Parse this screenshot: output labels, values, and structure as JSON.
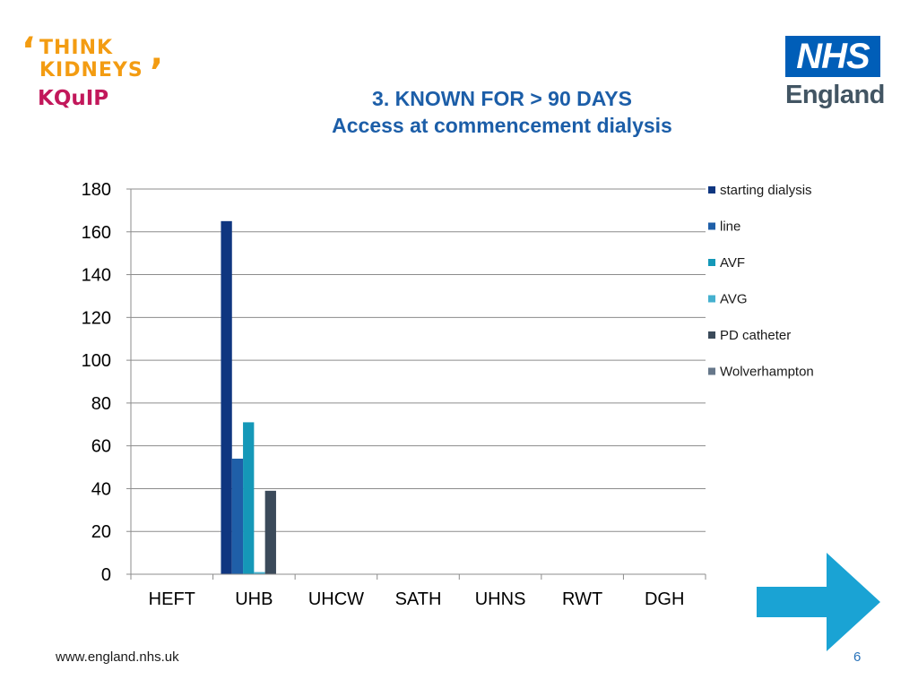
{
  "logos": {
    "think_kidneys": {
      "line1": "THINK",
      "line2": "KIDNEYS",
      "line3": "KQuIP"
    },
    "nhs": {
      "box": "NHS",
      "text": "England"
    }
  },
  "title": {
    "line1": "3. KNOWN FOR  > 90 DAYS",
    "line2": "Access at commencement dialysis"
  },
  "chart_data": {
    "type": "bar",
    "categories": [
      "HEFT",
      "UHB",
      "UHCW",
      "SATH",
      "UHNS",
      "RWT",
      "DGH"
    ],
    "series": [
      {
        "name": "starting dialysis",
        "color": "#0f3680",
        "values": [
          0,
          165,
          0,
          0,
          0,
          0,
          0
        ]
      },
      {
        "name": "line",
        "color": "#1f5fa8",
        "values": [
          0,
          54,
          0,
          0,
          0,
          0,
          0
        ]
      },
      {
        "name": "AVF",
        "color": "#1598b8",
        "values": [
          0,
          71,
          0,
          0,
          0,
          0,
          0
        ]
      },
      {
        "name": "AVG",
        "color": "#45b0cf",
        "values": [
          0,
          1,
          0,
          0,
          0,
          0,
          0
        ]
      },
      {
        "name": "PD catheter",
        "color": "#3b4a5a",
        "values": [
          0,
          39,
          0,
          0,
          0,
          0,
          0
        ]
      },
      {
        "name": "Wolverhampton",
        "color": "#66778a",
        "values": [
          0,
          0,
          0,
          0,
          0,
          0,
          0
        ]
      }
    ],
    "yticks": [
      0,
      20,
      40,
      60,
      80,
      100,
      120,
      140,
      160,
      180
    ],
    "ylim": [
      0,
      180
    ],
    "grid": true,
    "legend": "right"
  },
  "footer": {
    "url": "www.england.nhs.uk",
    "page": "6"
  },
  "colors": {
    "title": "#1c5ea8",
    "arrow": "#1aa3d4",
    "nhs_blue": "#005eb8"
  }
}
